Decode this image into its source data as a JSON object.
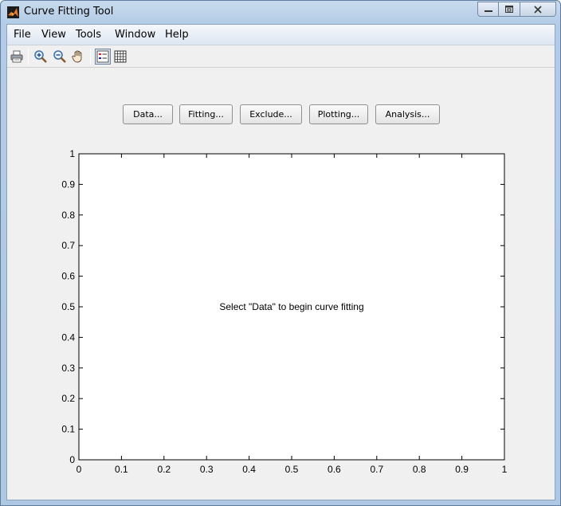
{
  "window": {
    "title": "Curve Fitting Tool"
  },
  "menubar": {
    "items": [
      "File",
      "View",
      "Tools",
      "Window",
      "Help"
    ]
  },
  "toolbar": {
    "icons": [
      "print-icon",
      "zoom-in-icon",
      "zoom-out-icon",
      "pan-hand-icon",
      "legend-toggle-icon",
      "grid-toggle-icon"
    ]
  },
  "buttons": {
    "data": "Data...",
    "fitting": "Fitting...",
    "exclude": "Exclude...",
    "plotting": "Plotting...",
    "analysis": "Analysis..."
  },
  "plot": {
    "message": "Select \"Data\" to begin curve fitting"
  },
  "chart_data": {
    "type": "line",
    "series": [],
    "xlim": [
      0,
      1
    ],
    "ylim": [
      0,
      1
    ],
    "xticks": [
      "0",
      "0.1",
      "0.2",
      "0.3",
      "0.4",
      "0.5",
      "0.6",
      "0.7",
      "0.8",
      "0.9",
      "1"
    ],
    "yticks": [
      "0",
      "0.1",
      "0.2",
      "0.3",
      "0.4",
      "0.5",
      "0.6",
      "0.7",
      "0.8",
      "0.9",
      "1"
    ],
    "grid": false,
    "title": "",
    "xlabel": "",
    "ylabel": ""
  }
}
